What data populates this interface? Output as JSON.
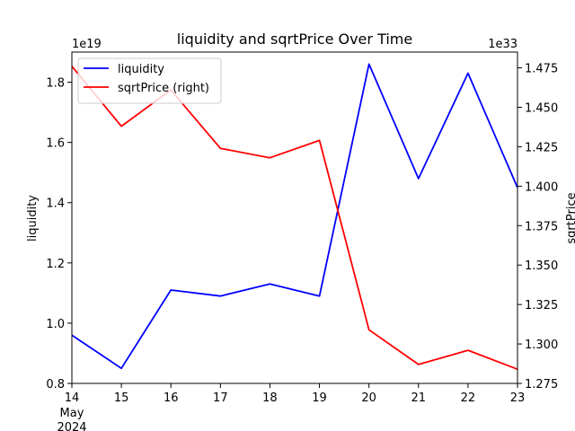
{
  "chart_data": {
    "type": "line",
    "title": "liquidity and sqrtPrice Over Time",
    "xlabel": "",
    "x_ticks": [
      "14",
      "15",
      "16",
      "17",
      "18",
      "19",
      "20",
      "21",
      "22",
      "23"
    ],
    "x_sublabel": [
      "May",
      "2024"
    ],
    "x": [
      "2024-05-14",
      "2024-05-15",
      "2024-05-16",
      "2024-05-17",
      "2024-05-18",
      "2024-05-19",
      "2024-05-20",
      "2024-05-21",
      "2024-05-22",
      "2024-05-23"
    ],
    "left_axis": {
      "label": "liquidity",
      "offset_text": "1e19",
      "ylim": [
        0.8,
        1.9
      ],
      "ticks": [
        "0.8",
        "1.0",
        "1.2",
        "1.4",
        "1.6",
        "1.8"
      ]
    },
    "right_axis": {
      "label": "sqrtPrice",
      "offset_text": "1e33",
      "ylim": [
        1.275,
        1.485
      ],
      "ticks": [
        "1.275",
        "1.300",
        "1.325",
        "1.350",
        "1.375",
        "1.400",
        "1.425",
        "1.450",
        "1.475"
      ]
    },
    "series": [
      {
        "name": "liquidity",
        "axis": "left",
        "color": "#0000ff",
        "values": [
          0.96,
          0.85,
          1.11,
          1.09,
          1.13,
          1.09,
          1.86,
          1.48,
          1.83,
          1.45
        ]
      },
      {
        "name": "sqrtPrice (right)",
        "axis": "right",
        "color": "#ff0000",
        "values": [
          1.476,
          1.438,
          1.461,
          1.424,
          1.418,
          1.429,
          1.309,
          1.287,
          1.296,
          1.284
        ]
      }
    ],
    "legend_position": "top-left",
    "grid": false
  }
}
